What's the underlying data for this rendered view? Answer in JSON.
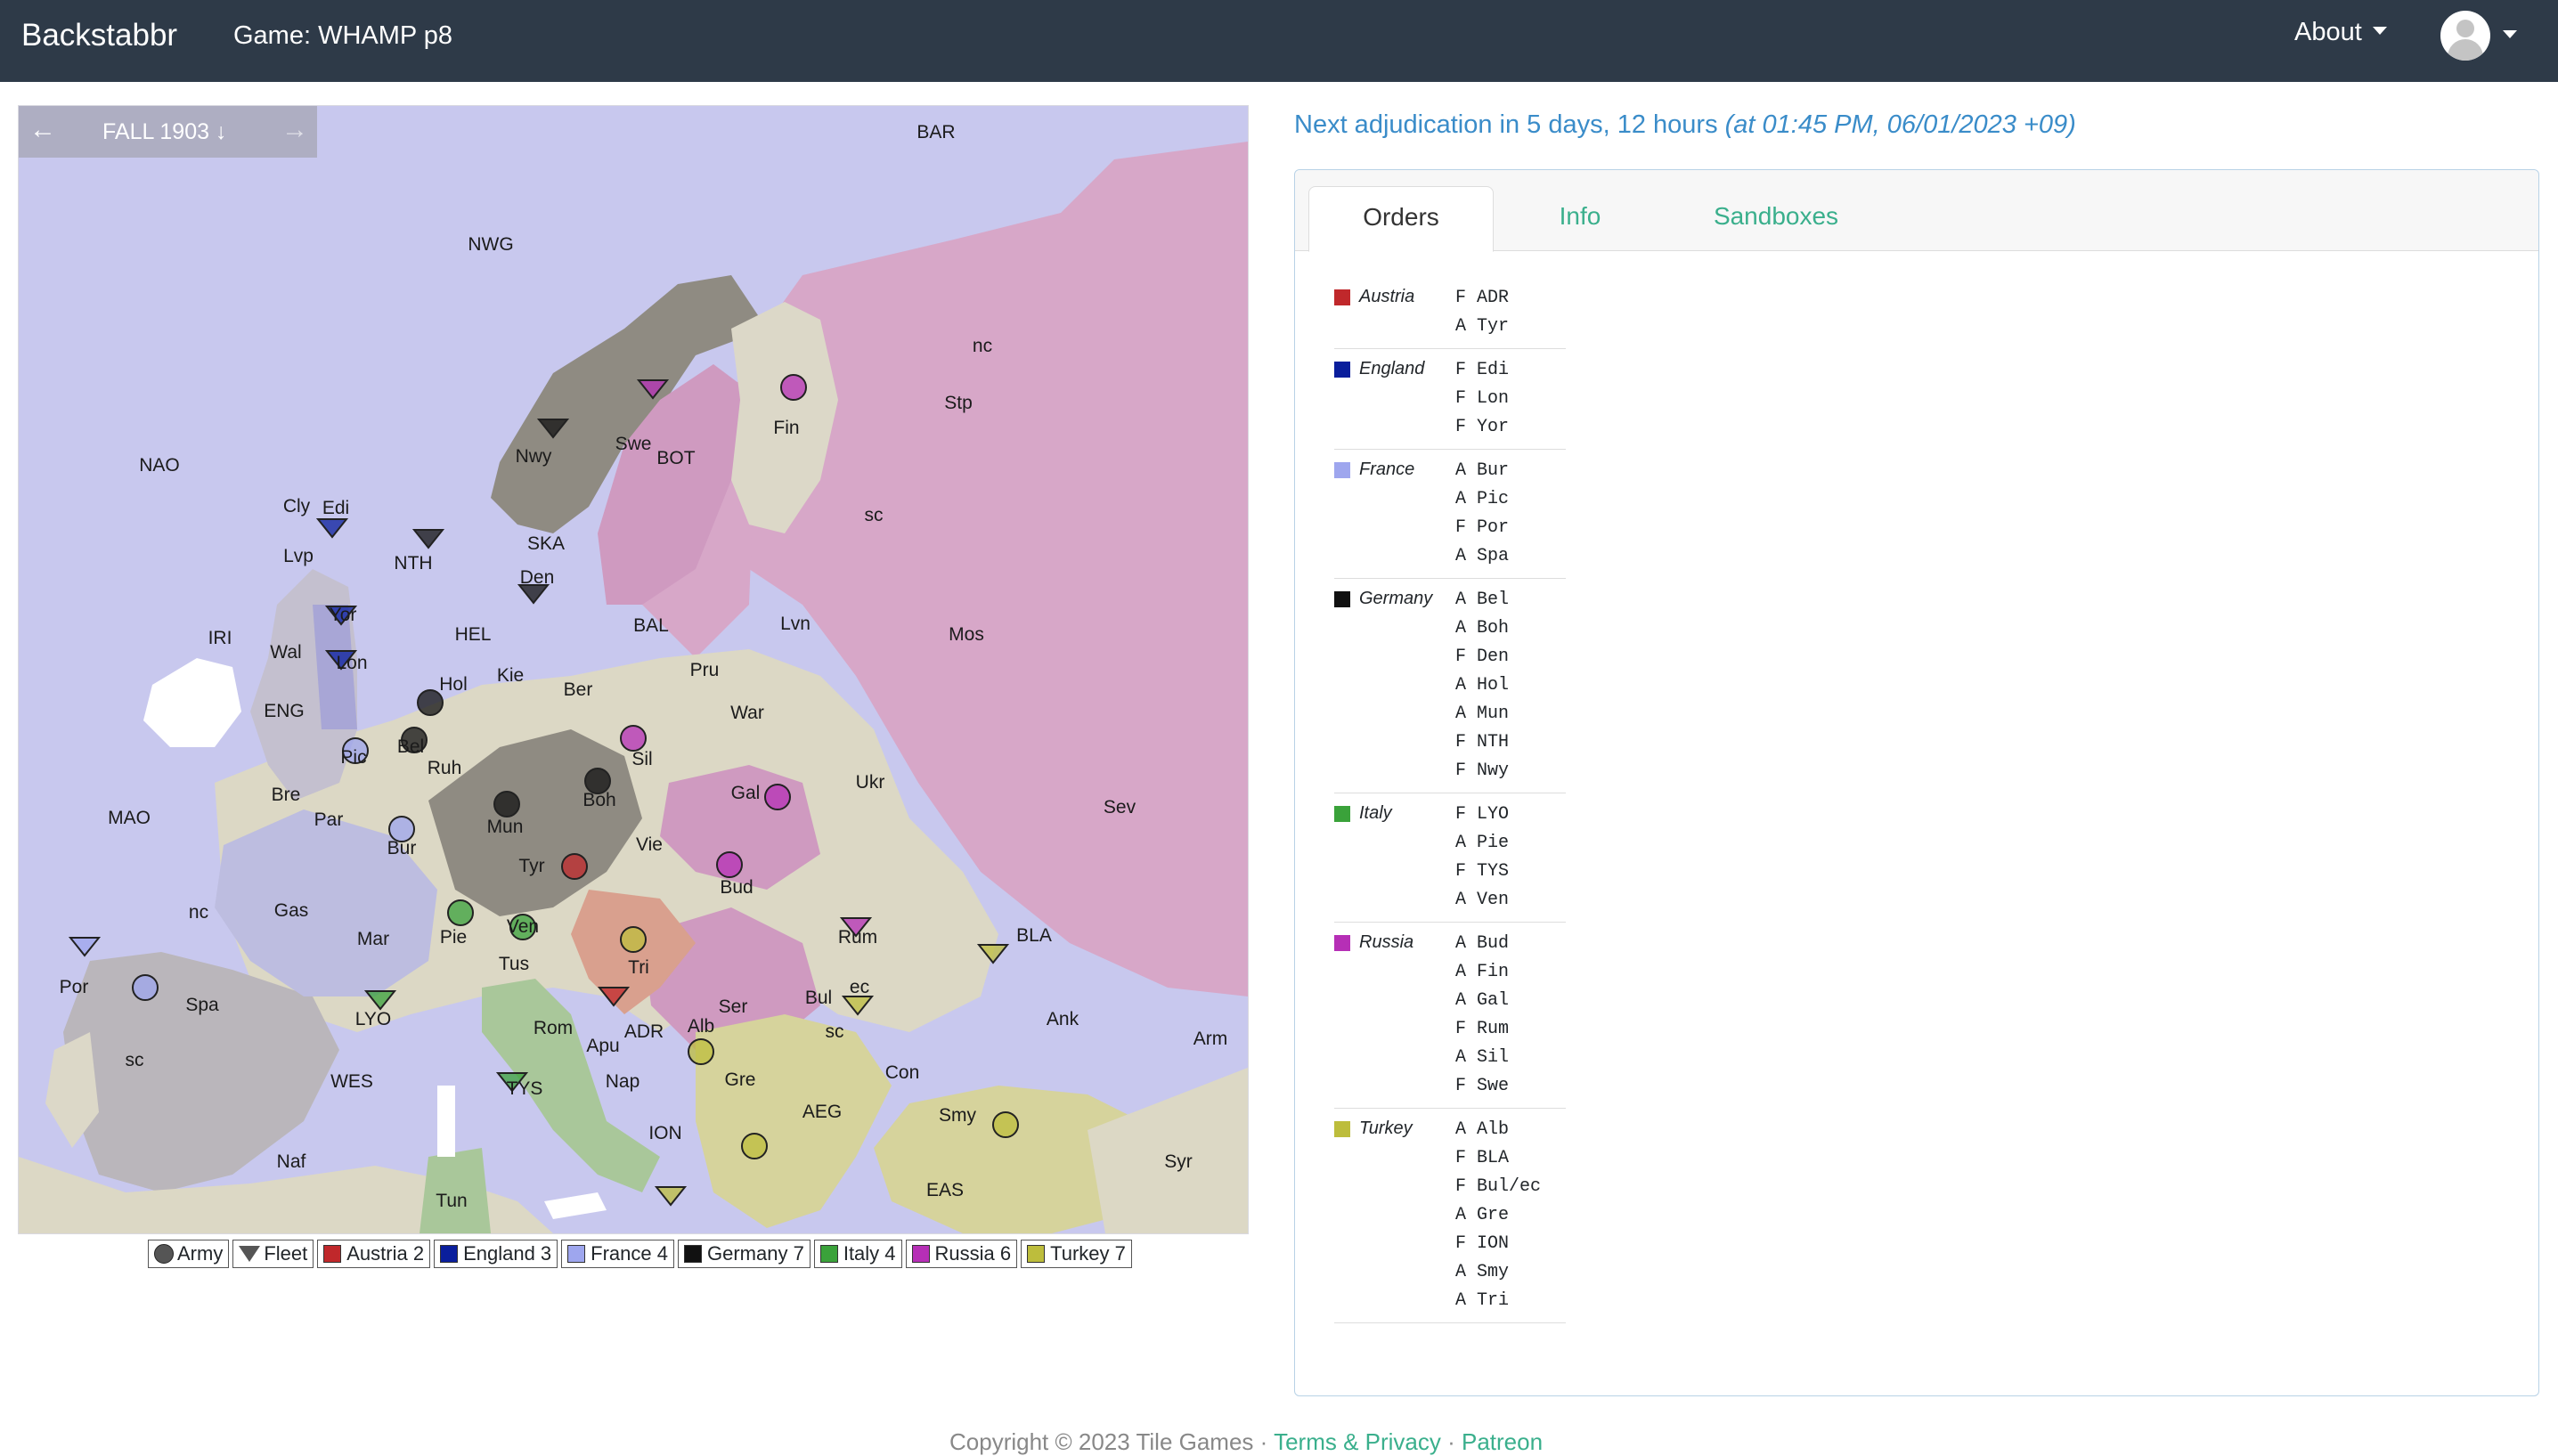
{
  "nav": {
    "brand": "Backstabbr",
    "game_title": "Game: WHAMP p8",
    "about": "About"
  },
  "phase": {
    "prev": "←",
    "label": "FALL 1903 ↓",
    "next": "→"
  },
  "map_labels": [
    "BAR",
    "NWG",
    "NAO",
    "Cly",
    "Edi",
    "Lvp",
    "NTH",
    "Nwy",
    "Swe",
    "Fin",
    "Stp",
    "nc",
    "sc",
    "BOT",
    "SKA",
    "Den",
    "IRI",
    "Wal",
    "Lon",
    "Yor",
    "HEL",
    "Hol",
    "Kie",
    "Ber",
    "BAL",
    "Lvn",
    "Mos",
    "Pru",
    "ENG",
    "Bel",
    "Pic",
    "Ruh",
    "War",
    "Sil",
    "Bre",
    "Par",
    "Gal",
    "Ukr",
    "MAO",
    "Bur",
    "Mun",
    "Boh",
    "Vie",
    "Tyr",
    "Sev",
    "nc",
    "Gas",
    "Mar",
    "Pie",
    "Ven",
    "Bud",
    "Rum",
    "BLA",
    "Por",
    "Spa",
    "sc",
    "LYO",
    "Tus",
    "Tri",
    "Ser",
    "Bul",
    "ec",
    "sc",
    "Ank",
    "Arm",
    "Rom",
    "Apu",
    "ADR",
    "Alb",
    "Con",
    "WES",
    "TYS",
    "Nap",
    "Gre",
    "AEG",
    "Smy",
    "ION",
    "Naf",
    "Syr",
    "Tun",
    "EAS"
  ],
  "legend": [
    {
      "label": "Army",
      "kind": "army"
    },
    {
      "label": "Fleet",
      "kind": "fleet"
    },
    {
      "label": "Austria 2",
      "color": "#c0282b"
    },
    {
      "label": "England 3",
      "color": "#0a1e9c"
    },
    {
      "label": "France 4",
      "color": "#9ea6ee"
    },
    {
      "label": "Germany 7",
      "color": "#111111"
    },
    {
      "label": "Italy 4",
      "color": "#3aa23a"
    },
    {
      "label": "Russia 6",
      "color": "#b62fb6"
    },
    {
      "label": "Turkey 7",
      "color": "#bdbd3c"
    }
  ],
  "adjudication": {
    "text": "Next adjudication in 5 days, 12 hours",
    "time": "(at 01:45 PM, 06/01/2023 +09)"
  },
  "tabs": [
    {
      "label": "Orders"
    },
    {
      "label": "Info"
    },
    {
      "label": "Sandboxes"
    }
  ],
  "orders": [
    {
      "nation": "Austria",
      "color": "#c0282b",
      "orders": [
        "F ADR",
        "A Tyr"
      ]
    },
    {
      "nation": "England",
      "color": "#0a1e9c",
      "orders": [
        "F Edi",
        "F Lon",
        "F Yor"
      ]
    },
    {
      "nation": "France",
      "color": "#9ea6ee",
      "orders": [
        "A Bur",
        "A Pic",
        "F Por",
        "A Spa"
      ]
    },
    {
      "nation": "Germany",
      "color": "#111111",
      "orders": [
        "A Bel",
        "A Boh",
        "F Den",
        "A Hol",
        "A Mun",
        "F NTH",
        "F Nwy"
      ]
    },
    {
      "nation": "Italy",
      "color": "#3aa23a",
      "orders": [
        "F LYO",
        "A Pie",
        "F TYS",
        "A Ven"
      ]
    },
    {
      "nation": "Russia",
      "color": "#b62fb6",
      "orders": [
        "A Bud",
        "A Fin",
        "A Gal",
        "F Rum",
        "A Sil",
        "F Swe"
      ]
    },
    {
      "nation": "Turkey",
      "color": "#bdbd3c",
      "orders": [
        "A Alb",
        "F BLA",
        "F Bul/ec",
        "A Gre",
        "F ION",
        "A Smy",
        "A Tri"
      ]
    }
  ],
  "footer": {
    "copyright": "Copyright © 2023 Tile Games",
    "sep1": " · ",
    "terms": "Terms & Privacy",
    "sep2": " · ",
    "patreon": "Patreon"
  }
}
